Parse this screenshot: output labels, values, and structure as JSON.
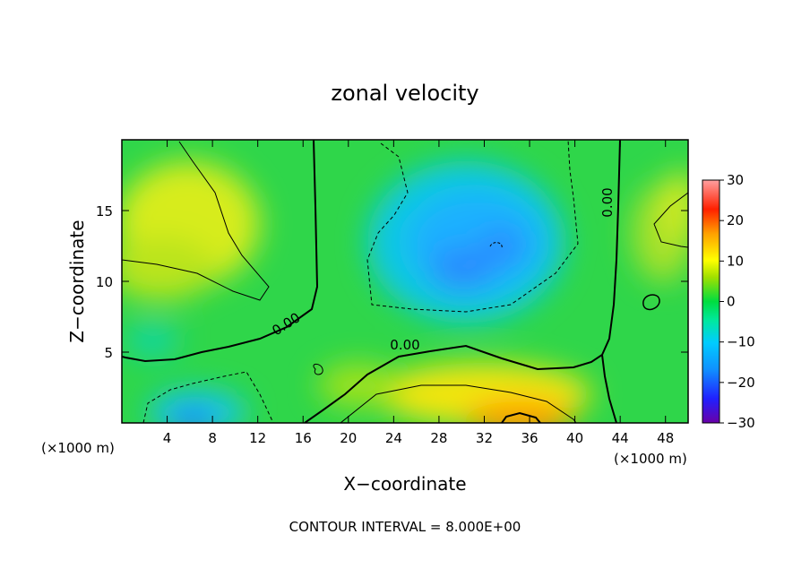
{
  "chart_data": {
    "type": "heatmap",
    "title": "zonal velocity",
    "xlabel": "X−coordinate",
    "ylabel": "Z−coordinate",
    "x_unit_left": "(×1000 m)",
    "x_unit_right": "(×1000 m)",
    "footer": "CONTOUR INTERVAL = 8.000E+00",
    "xlim": [
      0,
      50
    ],
    "ylim": [
      0,
      20
    ],
    "x_ticks": [
      4,
      8,
      12,
      16,
      20,
      24,
      28,
      32,
      36,
      40,
      44,
      48
    ],
    "y_ticks": [
      5,
      10,
      15
    ],
    "x_tick_labels": [
      "4",
      "8",
      "12",
      "16",
      "20",
      "24",
      "28",
      "32",
      "36",
      "40",
      "44",
      "48"
    ],
    "y_tick_labels": [
      "5",
      "10",
      "15"
    ],
    "colorbar": {
      "range": [
        -30,
        30
      ],
      "ticks": [
        30,
        20,
        10,
        0,
        -10,
        -20,
        -30
      ],
      "tick_labels": [
        "30",
        "20",
        "10",
        "0",
        "−10",
        "−20",
        "−30"
      ],
      "colors": [
        "#6a00a8",
        "#2020ff",
        "#1090ff",
        "#00ccff",
        "#00e8a0",
        "#00dd40",
        "#a0e000",
        "#ffff00",
        "#ffa000",
        "#ff2000",
        "#ffa0a0"
      ]
    },
    "contour_labels": [
      "0.00",
      "0.00",
      "0.00"
    ],
    "contour_interval": 8.0,
    "features": [
      {
        "x": 32,
        "z": 12.5,
        "value": -12,
        "note": "negative core"
      },
      {
        "x": 35,
        "z": 0.5,
        "value": 16,
        "note": "positive max near surface"
      },
      {
        "x": 7,
        "z": 15,
        "value": 10,
        "note": "positive upper-left"
      },
      {
        "x": 7,
        "z": 0.5,
        "value": -10,
        "note": "negative near surface"
      }
    ]
  }
}
